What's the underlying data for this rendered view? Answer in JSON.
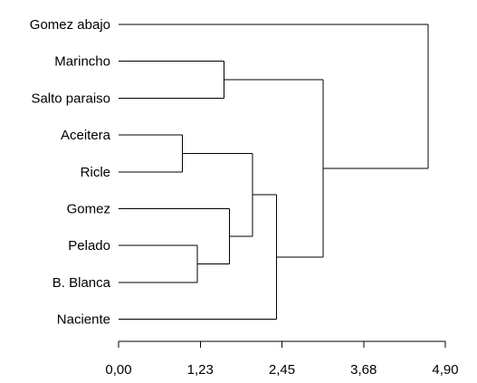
{
  "dendrogram": {
    "leaves": [
      "Gomez abajo",
      "Marincho",
      "Salto paraiso",
      "Aceitera",
      "Ricle",
      "Gomez",
      "Pelado",
      "B. Blanca",
      "Naciente"
    ],
    "merges": [
      {
        "a": "L3",
        "b": "L4",
        "height": 0.96
      },
      {
        "a": "L6",
        "b": "L7",
        "height": 1.18
      },
      {
        "a": "L5",
        "b": "M1",
        "height": 1.66
      },
      {
        "a": "L1",
        "b": "L2",
        "height": 1.58
      },
      {
        "a": "M0",
        "b": "M2",
        "height": 2.01
      },
      {
        "a": "M4",
        "b": "L8",
        "height": 2.37
      },
      {
        "a": "M3",
        "b": "M5",
        "height": 3.07
      },
      {
        "a": "L0",
        "b": "M6",
        "height": 4.64
      }
    ],
    "axis": {
      "range": [
        0,
        4.9
      ],
      "ticks": [
        0.0,
        1.225,
        2.45,
        3.675,
        4.9
      ],
      "tick_labels": [
        "0,00",
        "1,23",
        "2,45",
        "3,68",
        "4,90"
      ]
    },
    "line_color": "#000000"
  }
}
